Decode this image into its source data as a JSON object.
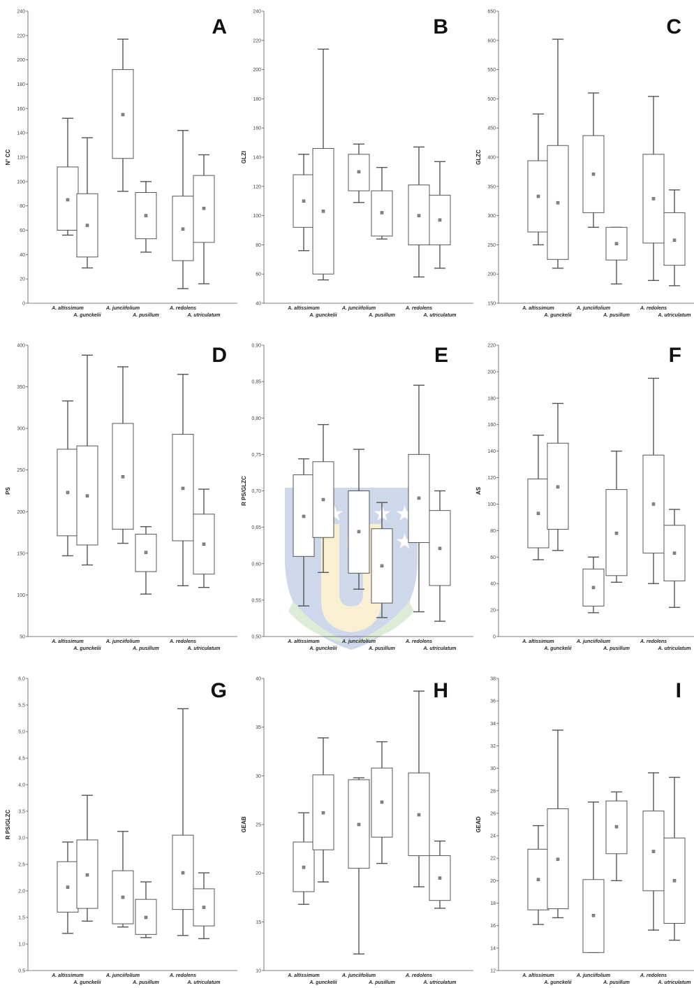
{
  "categories": [
    "A. altissimum",
    "A. gunckelii",
    "A. junciifolium",
    "A. pusillum",
    "A. redolens",
    "A. utriculatum"
  ],
  "chart_data": [
    {
      "type": "box",
      "panel": "A",
      "ylabel": "N° CC",
      "ylim": [
        0,
        240
      ],
      "yticks": [
        "0",
        "20",
        "40",
        "60",
        "80",
        "100",
        "120",
        "140",
        "160",
        "180",
        "200",
        "220",
        "240"
      ],
      "series": [
        {
          "min": 56,
          "q1": 60,
          "median": 85,
          "q3": 112,
          "max": 152
        },
        {
          "min": 29,
          "q1": 38,
          "median": 64,
          "q3": 90,
          "max": 136
        },
        {
          "min": 92,
          "q1": 119,
          "median": 155,
          "q3": 192,
          "max": 217
        },
        {
          "min": 42,
          "q1": 53,
          "median": 72,
          "q3": 91,
          "max": 100
        },
        {
          "min": 12,
          "q1": 35,
          "median": 61,
          "q3": 88,
          "max": 142
        },
        {
          "min": 16,
          "q1": 50,
          "median": 78,
          "q3": 105,
          "max": 122
        }
      ]
    },
    {
      "type": "box",
      "panel": "B",
      "ylabel": "GLZI",
      "ylim": [
        40,
        240
      ],
      "yticks": [
        "40",
        "60",
        "80",
        "100",
        "120",
        "140",
        "160",
        "180",
        "200",
        "220",
        "240"
      ],
      "series": [
        {
          "min": 76,
          "q1": 92,
          "median": 110,
          "q3": 128,
          "max": 142
        },
        {
          "min": 56,
          "q1": 60,
          "median": 103,
          "q3": 146,
          "max": 214
        },
        {
          "min": 109,
          "q1": 117,
          "median": 130,
          "q3": 142,
          "max": 149
        },
        {
          "min": 84,
          "q1": 86,
          "median": 102,
          "q3": 117,
          "max": 133
        },
        {
          "min": 58,
          "q1": 80,
          "median": 100,
          "q3": 121,
          "max": 147
        },
        {
          "min": 64,
          "q1": 80,
          "median": 97,
          "q3": 114,
          "max": 137
        }
      ]
    },
    {
      "type": "box",
      "panel": "C",
      "ylabel": "GLZC",
      "ylim": [
        150,
        650
      ],
      "yticks": [
        "150",
        "200",
        "250",
        "300",
        "350",
        "400",
        "450",
        "500",
        "550",
        "600",
        "650"
      ],
      "series": [
        {
          "min": 250,
          "q1": 272,
          "median": 333,
          "q3": 394,
          "max": 474
        },
        {
          "min": 210,
          "q1": 225,
          "median": 322,
          "q3": 420,
          "max": 602
        },
        {
          "min": 280,
          "q1": 305,
          "median": 371,
          "q3": 437,
          "max": 510
        },
        {
          "min": 183,
          "q1": 224,
          "median": 252,
          "q3": 280,
          "max": 280
        },
        {
          "min": 189,
          "q1": 253,
          "median": 329,
          "q3": 405,
          "max": 504
        },
        {
          "min": 180,
          "q1": 215,
          "median": 258,
          "q3": 305,
          "max": 344
        }
      ]
    },
    {
      "type": "box",
      "panel": "D",
      "ylabel": "PS",
      "ylim": [
        50,
        400
      ],
      "yticks": [
        "50",
        "100",
        "150",
        "200",
        "250",
        "300",
        "350",
        "400"
      ],
      "series": [
        {
          "min": 147,
          "q1": 171,
          "median": 223,
          "q3": 275,
          "max": 333
        },
        {
          "min": 136,
          "q1": 160,
          "median": 219,
          "q3": 279,
          "max": 388
        },
        {
          "min": 162,
          "q1": 179,
          "median": 242,
          "q3": 306,
          "max": 374
        },
        {
          "min": 101,
          "q1": 128,
          "median": 151,
          "q3": 173,
          "max": 182
        },
        {
          "min": 111,
          "q1": 165,
          "median": 228,
          "q3": 293,
          "max": 365
        },
        {
          "min": 109,
          "q1": 125,
          "median": 161,
          "q3": 197,
          "max": 227
        }
      ]
    },
    {
      "type": "box",
      "panel": "E",
      "ylabel": "R PS/GLZC",
      "ylim": [
        0.5,
        0.9
      ],
      "yticks": [
        "0,50",
        "0,55",
        "0,60",
        "0,65",
        "0,70",
        "0,75",
        "0,80",
        "0,85",
        "0,90"
      ],
      "series": [
        {
          "min": 0.542,
          "q1": 0.61,
          "median": 0.665,
          "q3": 0.722,
          "max": 0.744
        },
        {
          "min": 0.588,
          "q1": 0.636,
          "median": 0.688,
          "q3": 0.74,
          "max": 0.791
        },
        {
          "min": 0.565,
          "q1": 0.587,
          "median": 0.644,
          "q3": 0.7,
          "max": 0.757
        },
        {
          "min": 0.526,
          "q1": 0.546,
          "median": 0.597,
          "q3": 0.648,
          "max": 0.684
        },
        {
          "min": 0.534,
          "q1": 0.629,
          "median": 0.69,
          "q3": 0.75,
          "max": 0.845
        },
        {
          "min": 0.521,
          "q1": 0.57,
          "median": 0.621,
          "q3": 0.673,
          "max": 0.7
        }
      ]
    },
    {
      "type": "box",
      "panel": "F",
      "ylabel": "AS",
      "ylim": [
        0,
        220
      ],
      "yticks": [
        "0",
        "20",
        "40",
        "60",
        "80",
        "100",
        "120",
        "140",
        "160",
        "180",
        "200",
        "220"
      ],
      "series": [
        {
          "min": 58,
          "q1": 67,
          "median": 93,
          "q3": 119,
          "max": 152
        },
        {
          "min": 65,
          "q1": 81,
          "median": 113,
          "q3": 146,
          "max": 176
        },
        {
          "min": 18,
          "q1": 23,
          "median": 37,
          "q3": 51,
          "max": 60
        },
        {
          "min": 41,
          "q1": 46,
          "median": 78,
          "q3": 111,
          "max": 140
        },
        {
          "min": 40,
          "q1": 63,
          "median": 100,
          "q3": 137,
          "max": 195
        },
        {
          "min": 22,
          "q1": 42,
          "median": 63,
          "q3": 84,
          "max": 96
        }
      ]
    },
    {
      "type": "box",
      "panel": "G",
      "ylabel": "R PS/GLZC",
      "ylim": [
        0.5,
        6.0
      ],
      "yticks": [
        "0,5",
        "1,0",
        "1,5",
        "2,0",
        "2,5",
        "3,0",
        "3,5",
        "4,0",
        "4,5",
        "5,0",
        "5,5",
        "6,0"
      ],
      "series": [
        {
          "min": 1.2,
          "q1": 1.6,
          "median": 2.07,
          "q3": 2.55,
          "max": 2.92
        },
        {
          "min": 1.43,
          "q1": 1.67,
          "median": 2.3,
          "q3": 2.96,
          "max": 3.8
        },
        {
          "min": 1.32,
          "q1": 1.38,
          "median": 1.88,
          "q3": 2.38,
          "max": 3.12
        },
        {
          "min": 1.12,
          "q1": 1.18,
          "median": 1.5,
          "q3": 1.84,
          "max": 2.17
        },
        {
          "min": 1.16,
          "q1": 1.65,
          "median": 2.34,
          "q3": 3.05,
          "max": 5.43
        },
        {
          "min": 1.1,
          "q1": 1.34,
          "median": 1.69,
          "q3": 2.04,
          "max": 2.34
        }
      ]
    },
    {
      "type": "box",
      "panel": "H",
      "ylabel": "GEAB",
      "ylim": [
        10,
        40
      ],
      "yticks": [
        "10",
        "15",
        "20",
        "25",
        "30",
        "35",
        "40"
      ],
      "series": [
        {
          "min": 16.8,
          "q1": 18.1,
          "median": 20.6,
          "q3": 23.2,
          "max": 26.2
        },
        {
          "min": 19.1,
          "q1": 22.4,
          "median": 26.2,
          "q3": 30.1,
          "max": 33.9
        },
        {
          "min": 11.7,
          "q1": 20.5,
          "median": 25.0,
          "q3": 29.6,
          "max": 29.8
        },
        {
          "min": 21.0,
          "q1": 23.7,
          "median": 27.3,
          "q3": 30.8,
          "max": 33.5
        },
        {
          "min": 18.6,
          "q1": 21.8,
          "median": 26.0,
          "q3": 30.3,
          "max": 38.7
        },
        {
          "min": 16.4,
          "q1": 17.2,
          "median": 19.5,
          "q3": 21.8,
          "max": 23.3
        }
      ]
    },
    {
      "type": "box",
      "panel": "I",
      "ylabel": "GEAD",
      "ylim": [
        12,
        38
      ],
      "yticks": [
        "12",
        "14",
        "16",
        "18",
        "20",
        "22",
        "24",
        "26",
        "28",
        "30",
        "32",
        "34",
        "36",
        "38"
      ],
      "series": [
        {
          "min": 16.1,
          "q1": 17.4,
          "median": 20.1,
          "q3": 22.8,
          "max": 24.9
        },
        {
          "min": 16.7,
          "q1": 17.5,
          "median": 21.9,
          "q3": 26.4,
          "max": 33.4
        },
        {
          "min": 13.6,
          "q1": 13.6,
          "median": 16.9,
          "q3": 20.1,
          "max": 27.0
        },
        {
          "min": 20.0,
          "q1": 22.4,
          "median": 24.8,
          "q3": 27.1,
          "max": 27.9
        },
        {
          "min": 15.6,
          "q1": 19.1,
          "median": 22.6,
          "q3": 26.2,
          "max": 29.6
        },
        {
          "min": 14.7,
          "q1": 16.2,
          "median": 20.0,
          "q3": 23.8,
          "max": 29.2
        }
      ]
    }
  ]
}
